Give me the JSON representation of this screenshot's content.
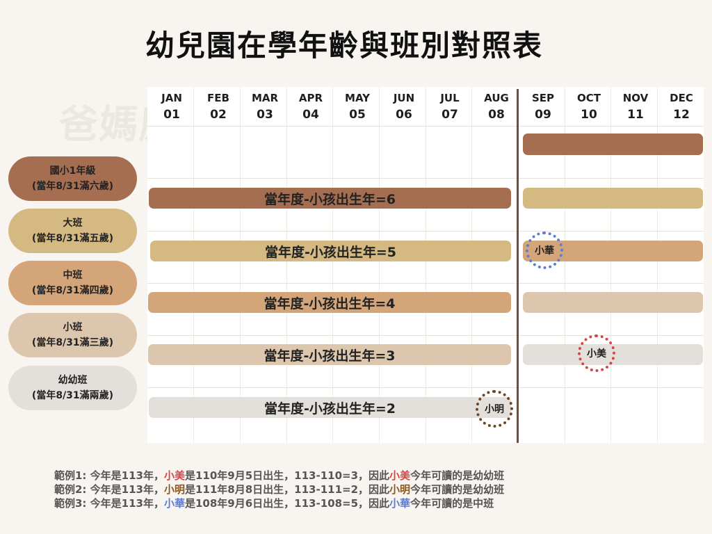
{
  "title": "幼兒園在學年齡與班別對照表",
  "watermark": "爸媽應援團 papamama.tw",
  "months": [
    {
      "name": "JAN",
      "num": "01"
    },
    {
      "name": "FEB",
      "num": "02"
    },
    {
      "name": "MAR",
      "num": "03"
    },
    {
      "name": "APR",
      "num": "04"
    },
    {
      "name": "MAY",
      "num": "05"
    },
    {
      "name": "JUN",
      "num": "06"
    },
    {
      "name": "JUL",
      "num": "07"
    },
    {
      "name": "AUG",
      "num": "08"
    },
    {
      "name": "SEP",
      "num": "09"
    },
    {
      "name": "OCT",
      "num": "10"
    },
    {
      "name": "NOV",
      "num": "11"
    },
    {
      "name": "DEC",
      "num": "12"
    }
  ],
  "classes": [
    {
      "name": "國小1年級",
      "rule": "(當年8/31滿六歲)"
    },
    {
      "name": "大班",
      "rule": "(當年8/31滿五歲)"
    },
    {
      "name": "中班",
      "rule": "(當年8/31滿四歲)"
    },
    {
      "name": "小班",
      "rule": "(當年8/31滿三歲)"
    },
    {
      "name": "幼幼班",
      "rule": "(當年8/31滿兩歲)"
    }
  ],
  "bars": {
    "age6": "當年度-小孩出生年=6",
    "age5": "當年度-小孩出生年=5",
    "age4": "當年度-小孩出生年=4",
    "age3": "當年度-小孩出生年=3",
    "age2": "當年度-小孩出生年=2"
  },
  "markers": {
    "xiaohua": {
      "label": "小華",
      "color": "#5b7bd5"
    },
    "xiaomei": {
      "label": "小美",
      "color": "#d64545"
    },
    "xiaoming": {
      "label": "小明",
      "color": "#6b4423"
    }
  },
  "colors": {
    "class1": "#a56e51",
    "class2": "#d4b983",
    "class3": "#d5a57a",
    "class4": "#dcc7ae",
    "class5": "#e3dfda",
    "divider": "#7a4c32"
  },
  "examples": [
    {
      "p1": "範例1: 今年是113年，",
      "name": "小美",
      "p2": "是110年9月5日出生，113-110=3，因此",
      "name2": "小美",
      "p3": "今年可讀的是幼幼班",
      "color": "#d64545"
    },
    {
      "p1": "範例2: 今年是113年，",
      "name": "小明",
      "p2": "是111年8月8日出生，113-111=2，因此",
      "name2": "小明",
      "p3": "今年可讀的是幼幼班",
      "color": "#8a5a1e"
    },
    {
      "p1": "範例3: 今年是113年，",
      "name": "小華",
      "p2": "是108年9月6日出生，113-108=5，因此",
      "name2": "小華",
      "p3": "今年可讀的是中班",
      "color": "#5b7bd5"
    }
  ]
}
